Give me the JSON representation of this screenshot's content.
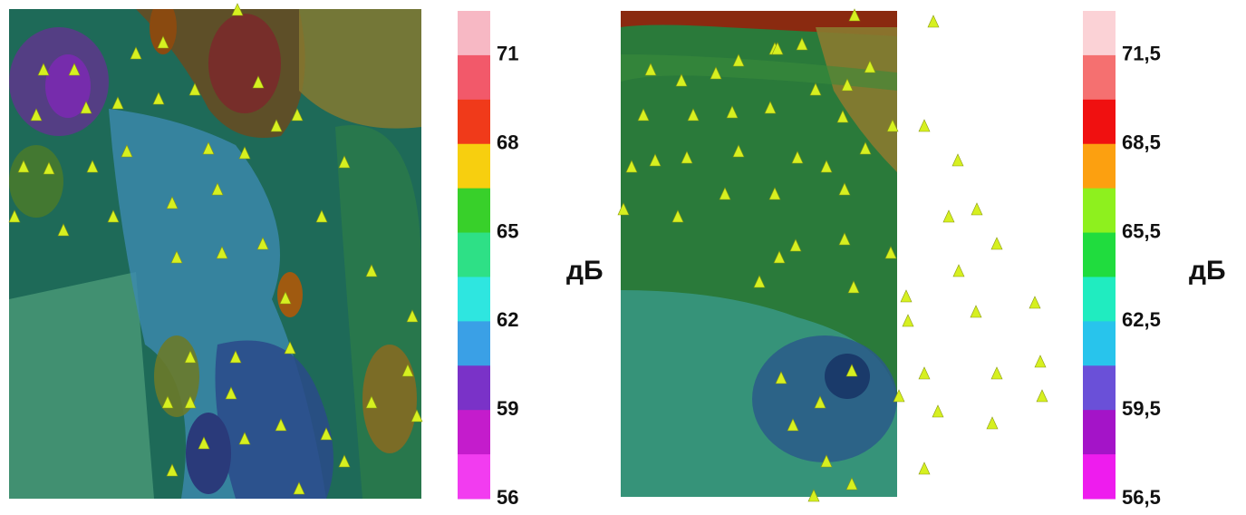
{
  "panels": [
    {
      "scale_labels": [
        "71",
        "68",
        "65",
        "62",
        "59",
        "56"
      ],
      "unit": "дБ",
      "scale_colors": [
        "#f7b8c4",
        "#f2596a",
        "#f03a1a",
        "#f7cf0f",
        "#38d02a",
        "#2ee086",
        "#2ee6e0",
        "#3aa0e6",
        "#7a32c8",
        "#c41ccc",
        "#f23cf0"
      ]
    },
    {
      "scale_labels": [
        "71,5",
        "68,5",
        "65,5",
        "62,5",
        "59,5",
        "56,5"
      ],
      "unit": "дБ",
      "scale_colors": [
        "#fbd2d6",
        "#f57070",
        "#f01010",
        "#fca010",
        "#8ef01e",
        "#20dc3e",
        "#20ecc0",
        "#28c4ec",
        "#6a50d8",
        "#a414c8",
        "#ee1cee"
      ]
    }
  ]
}
